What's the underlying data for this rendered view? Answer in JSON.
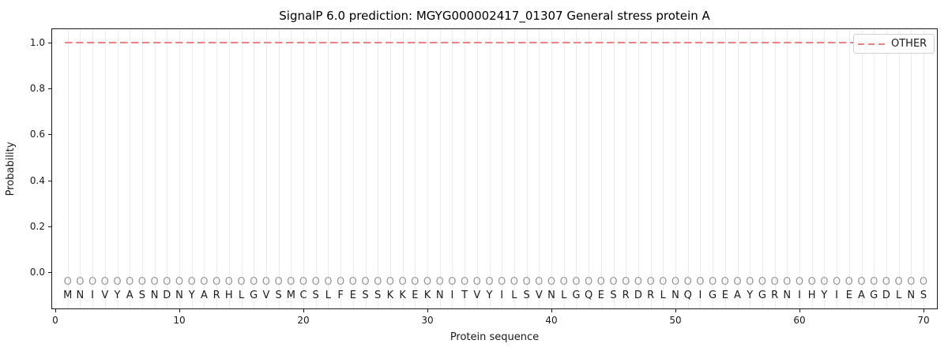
{
  "figure": {
    "title": "SignalP 6.0 prediction: MGYG000002417_01307 General stress protein A",
    "xlabel": "Protein sequence",
    "ylabel": "Probability",
    "legend": {
      "position": "upper right",
      "entries": [
        {
          "label": "OTHER",
          "line_style": "dashed",
          "color": "#ea8282"
        }
      ]
    }
  },
  "colors": {
    "other_line": "#ea8282",
    "gridline": "#ececec",
    "marker_row": "#979797",
    "sequence_letters": "#1c1c1c",
    "axes_and_text": "#1a1a1a",
    "background": "#ffffff",
    "legend_border": "#d2d2d2"
  },
  "chart_data": {
    "type": "line",
    "title": "SignalP 6.0 prediction: MGYG000002417_01307 General stress protein A",
    "xlabel": "Protein sequence",
    "ylabel": "Probability",
    "xticks": [
      0,
      10,
      20,
      30,
      40,
      50,
      60,
      70
    ],
    "ytick_labels": [
      "0.0",
      "0.2",
      "0.4",
      "0.6",
      "0.8",
      "1.0"
    ],
    "yticks": [
      0.0,
      0.2,
      0.4,
      0.6,
      0.8,
      1.0
    ],
    "xlim": [
      -0.3,
      71.1
    ],
    "ylim": [
      -0.16,
      1.06
    ],
    "grid": "light vertical gridline at every residue position",
    "legend_position": "upper right",
    "series": [
      {
        "name": "OTHER",
        "type": "line",
        "line_style": "dashed",
        "color": "#ea8282",
        "x_start": 1,
        "x_end": 70,
        "constant_y": 1.0,
        "note": "OTHER probability is a flat dashed line at 1.0 for all residue positions 1-70"
      }
    ],
    "sequence": "MNIVYASNDNYARHLGVSMCSLFESSKKEKNITVYILSVNLGQESRDRLNQIGEAYGRNIHYIEAGDLNS",
    "sequence_length": 70,
    "per_position_predicted_label": "O",
    "marker_row_y": -0.05,
    "letter_row_y": -0.11
  }
}
